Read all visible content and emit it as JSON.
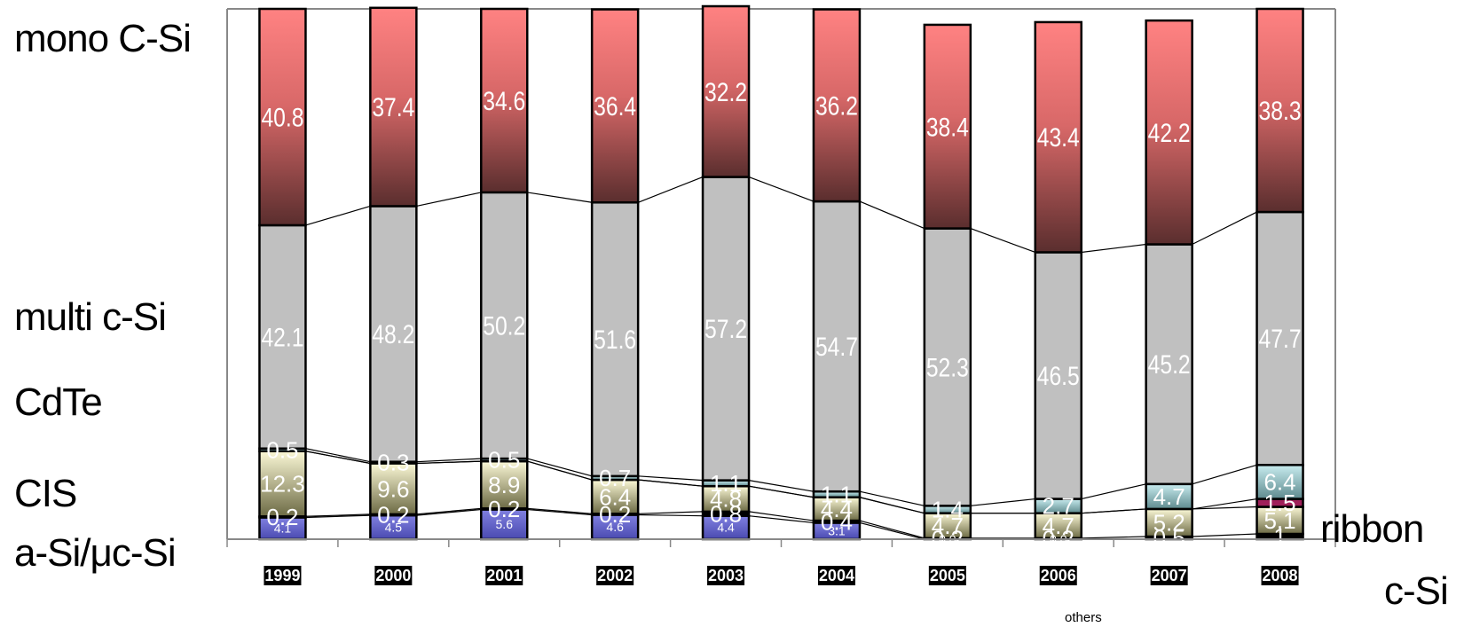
{
  "chart_data": {
    "type": "bar",
    "stacked": true,
    "categories": [
      "1999",
      "2000",
      "2001",
      "2002",
      "2003",
      "2004",
      "2005",
      "2006",
      "2007",
      "2008"
    ],
    "series": [
      {
        "name": "a-Si/μc-Si",
        "values": [
          4.1,
          4.5,
          5.6,
          4.6,
          4.4,
          3.1,
          0.0,
          0.0,
          0.0,
          0.0
        ],
        "color": "#6f6fd6",
        "label_color": "#ffffff"
      },
      {
        "name": "others",
        "values": [
          0.2,
          0.2,
          0.2,
          0.2,
          0.8,
          0.4,
          0.2,
          0.2,
          0.5,
          1.0
        ],
        "color": "#000000",
        "label_color": "#ffffff"
      },
      {
        "name": "CIS",
        "values": [
          12.3,
          9.6,
          8.9,
          6.4,
          4.8,
          4.4,
          4.7,
          4.7,
          5.2,
          5.1
        ],
        "color": "#f5f0c0",
        "label_color": "#ffffff"
      },
      {
        "name": "ribbon c-Si",
        "values": [
          0.0,
          0.0,
          0.0,
          0.0,
          0.0,
          0.0,
          0.0,
          0.0,
          0.0,
          1.5
        ],
        "color": "#a0205a",
        "label_color": "#ffffff"
      },
      {
        "name": "CdTe",
        "values": [
          0.5,
          0.3,
          0.5,
          0.7,
          1.1,
          1.1,
          1.4,
          2.7,
          4.7,
          6.4
        ],
        "color": "#b8dde0",
        "label_color": "#ffffff"
      },
      {
        "name": "multi c-Si",
        "values": [
          42.1,
          48.2,
          50.2,
          51.6,
          57.2,
          54.7,
          52.3,
          46.5,
          45.2,
          47.7
        ],
        "color": "#c0c0c0",
        "label_color": "#ffffff"
      },
      {
        "name": "mono C-Si",
        "values": [
          40.8,
          37.4,
          34.6,
          36.4,
          32.2,
          36.2,
          38.4,
          43.4,
          42.2,
          38.3
        ],
        "color": "#ff8080",
        "label_color": "#ffffff"
      }
    ],
    "data_labels": [
      [
        "4.1",
        "0.2",
        "12.3",
        "",
        "0.5",
        "42.1",
        "40.8"
      ],
      [
        "4.5",
        "0.2",
        "9.6",
        "",
        "0.3",
        "48.2",
        "37.4"
      ],
      [
        "5.6",
        "0.2",
        "8.9",
        "",
        "0.5",
        "50.2",
        "34.6"
      ],
      [
        "4.6",
        "0.2",
        "6.4",
        "",
        "0.7",
        "51.6",
        "36.4"
      ],
      [
        "4.4",
        "0.8",
        "4.8",
        "",
        "1.1",
        "57.2",
        "32.2"
      ],
      [
        "3.1",
        "0.4",
        "4.4",
        "",
        "1.1",
        "54.7",
        "36.2"
      ],
      [
        "0.0",
        "0.2",
        "4.7",
        "",
        "1.4",
        "52.3",
        "38.4"
      ],
      [
        "0.0",
        "0.2",
        "4.7",
        "",
        "2.7",
        "46.5",
        "43.4"
      ],
      [
        "",
        "0.5",
        "5.2",
        "",
        "4.7",
        "45.2",
        "42.2"
      ],
      [
        "",
        "1",
        "5.1",
        "1.5",
        "6.4",
        "47.7",
        "38.3"
      ]
    ],
    "ylim": [
      0,
      100
    ],
    "xlabel": "",
    "ylabel": "",
    "grid": false,
    "legend": "outside-labels"
  },
  "side_labels": {
    "mono": "mono C-Si",
    "multi": "multi c-Si",
    "cdte": "CdTe",
    "cis": "CIS",
    "asi": "a-Si/μc-Si",
    "ribbon1": "ribbon",
    "ribbon2": "c-Si",
    "others": "others"
  }
}
